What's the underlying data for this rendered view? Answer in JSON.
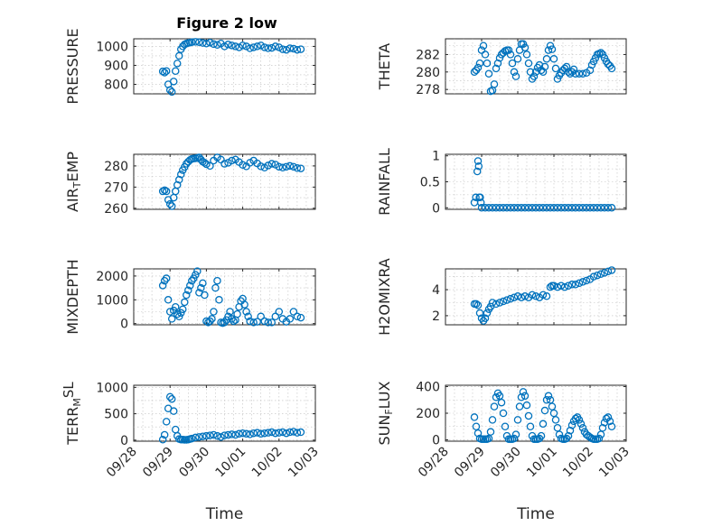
{
  "figure": {
    "title": "Figure 2 low",
    "marker_color": "#0072BD",
    "grid": true
  },
  "chart_data": [
    {
      "type": "scatter",
      "id": "pressure",
      "col": 0,
      "row": 0,
      "title": "Figure 2 low",
      "ylabel": "PRESSURE",
      "ylabel_parts": [
        {
          "t": "PRESSURE",
          "s": "n"
        }
      ],
      "xlabel": "",
      "xlim": [
        0,
        5
      ],
      "ylim": [
        750,
        1040
      ],
      "yticks": [
        800,
        900,
        1000
      ],
      "ytick_labels": [
        "800",
        "900",
        "1000"
      ],
      "xticks": [
        0,
        1,
        2,
        3,
        4,
        5
      ],
      "xtick_labels": [],
      "x": [
        0.8,
        0.85,
        0.9,
        0.95,
        1.0,
        1.05,
        1.1,
        1.15,
        1.2,
        1.25,
        1.3,
        1.35,
        1.4,
        1.45,
        1.5,
        1.55,
        1.6,
        1.7,
        1.8,
        1.9,
        2.0,
        2.1,
        2.2,
        2.3,
        2.4,
        2.5,
        2.6,
        2.7,
        2.8,
        2.9,
        3.0,
        3.1,
        3.2,
        3.3,
        3.4,
        3.5,
        3.6,
        3.7,
        3.8,
        3.9,
        4.0,
        4.1,
        4.2,
        4.3,
        4.4,
        4.5,
        4.6
      ],
      "y": [
        868,
        862,
        870,
        800,
        770,
        760,
        815,
        870,
        910,
        950,
        985,
        1000,
        1010,
        1015,
        1018,
        1020,
        1022,
        1024,
        1022,
        1018,
        1015,
        1020,
        1012,
        1008,
        1015,
        1000,
        1010,
        1005,
        1000,
        995,
        1005,
        1000,
        990,
        995,
        1000,
        1005,
        995,
        990,
        992,
        1000,
        995,
        985,
        982,
        990,
        988,
        982,
        985
      ]
    },
    {
      "type": "scatter",
      "id": "theta",
      "col": 1,
      "row": 0,
      "ylabel": "THETA",
      "ylabel_parts": [
        {
          "t": "THETA",
          "s": "n"
        }
      ],
      "xlabel": "",
      "xlim": [
        0,
        5
      ],
      "ylim": [
        277.5,
        283.8
      ],
      "yticks": [
        278,
        280,
        282
      ],
      "ytick_labels": [
        "278",
        "280",
        "282"
      ],
      "xticks": [
        0,
        1,
        2,
        3,
        4,
        5
      ],
      "xtick_labels": [],
      "x": [
        0.8,
        0.85,
        0.9,
        0.95,
        1.0,
        1.05,
        1.1,
        1.15,
        1.2,
        1.25,
        1.3,
        1.35,
        1.4,
        1.45,
        1.5,
        1.55,
        1.6,
        1.65,
        1.7,
        1.75,
        1.8,
        1.85,
        1.9,
        1.95,
        2.0,
        2.05,
        2.1,
        2.15,
        2.2,
        2.25,
        2.3,
        2.35,
        2.4,
        2.45,
        2.5,
        2.55,
        2.6,
        2.65,
        2.7,
        2.75,
        2.8,
        2.85,
        2.9,
        2.95,
        3.0,
        3.05,
        3.1,
        3.15,
        3.2,
        3.25,
        3.3,
        3.35,
        3.4,
        3.45,
        3.5,
        3.55,
        3.6,
        3.7,
        3.8,
        3.9,
        4.0,
        4.05,
        4.1,
        4.15,
        4.2,
        4.25,
        4.3,
        4.35,
        4.4,
        4.45,
        4.5,
        4.55,
        4.6
      ],
      "y": [
        280.0,
        280.2,
        280.5,
        281.0,
        282.5,
        283.0,
        282.0,
        281.0,
        279.8,
        277.8,
        277.9,
        278.6,
        280.4,
        281.0,
        281.6,
        282.0,
        282.2,
        282.4,
        282.5,
        282.5,
        282.0,
        281.0,
        280.0,
        279.5,
        281.5,
        282.5,
        283.2,
        283.2,
        282.8,
        282.0,
        281.0,
        280.0,
        279.2,
        279.5,
        280.0,
        280.5,
        280.8,
        280.2,
        280.0,
        280.6,
        281.5,
        282.5,
        283.0,
        282.6,
        281.5,
        280.4,
        279.2,
        279.6,
        279.9,
        280.2,
        280.4,
        280.6,
        280.0,
        279.8,
        280.0,
        280.3,
        279.8,
        279.8,
        279.8,
        279.9,
        280.2,
        280.8,
        281.2,
        281.6,
        282.0,
        282.1,
        282.2,
        282.0,
        281.6,
        281.2,
        280.9,
        280.7,
        280.4
      ]
    },
    {
      "type": "scatter",
      "id": "air_temp",
      "col": 0,
      "row": 1,
      "ylabel": "AIR_TEMP",
      "ylabel_parts": [
        {
          "t": "AIR",
          "s": "n"
        },
        {
          "t": "T",
          "s": "sub"
        },
        {
          "t": "EMP",
          "s": "n"
        }
      ],
      "xlabel": "",
      "xlim": [
        0,
        5
      ],
      "ylim": [
        259.5,
        285.5
      ],
      "yticks": [
        260,
        270,
        280
      ],
      "ytick_labels": [
        "260",
        "270",
        "280"
      ],
      "xticks": [
        0,
        1,
        2,
        3,
        4,
        5
      ],
      "xtick_labels": [],
      "x": [
        0.8,
        0.85,
        0.9,
        0.95,
        1.0,
        1.05,
        1.1,
        1.15,
        1.2,
        1.25,
        1.3,
        1.35,
        1.4,
        1.45,
        1.5,
        1.55,
        1.6,
        1.65,
        1.7,
        1.75,
        1.8,
        1.85,
        1.9,
        1.95,
        2.0,
        2.1,
        2.2,
        2.3,
        2.4,
        2.5,
        2.6,
        2.7,
        2.8,
        2.9,
        3.0,
        3.1,
        3.2,
        3.3,
        3.4,
        3.5,
        3.6,
        3.7,
        3.8,
        3.9,
        4.0,
        4.1,
        4.2,
        4.3,
        4.4,
        4.5,
        4.6
      ],
      "y": [
        268.0,
        268.5,
        268.0,
        264.0,
        262.0,
        261.0,
        265.0,
        268.0,
        271.0,
        273.5,
        276.0,
        278.0,
        279.5,
        281.0,
        282.0,
        282.8,
        283.3,
        283.5,
        283.6,
        283.8,
        284.0,
        283.0,
        282.0,
        281.5,
        280.8,
        280.0,
        282.5,
        284.0,
        283.0,
        281.0,
        281.5,
        282.5,
        283.0,
        281.8,
        280.5,
        279.8,
        281.5,
        282.5,
        281.2,
        279.8,
        279.2,
        280.2,
        281.0,
        280.6,
        279.6,
        279.2,
        279.6,
        280.0,
        279.6,
        279.0,
        278.8
      ]
    },
    {
      "type": "scatter",
      "id": "rainfall",
      "col": 1,
      "row": 1,
      "ylabel": "RAINFALL",
      "ylabel_parts": [
        {
          "t": "RAINFALL",
          "s": "n"
        }
      ],
      "xlabel": "",
      "xlim": [
        0,
        5
      ],
      "ylim": [
        -0.03,
        1.03
      ],
      "yticks": [
        0,
        0.5,
        1
      ],
      "ytick_labels": [
        "0",
        "0.5",
        "1"
      ],
      "xticks": [
        0,
        1,
        2,
        3,
        4,
        5
      ],
      "xtick_labels": [],
      "x": [
        0.8,
        0.84,
        0.88,
        0.9,
        0.92,
        0.94,
        0.96,
        0.98,
        1.0,
        1.1,
        1.2,
        1.3,
        1.4,
        1.5,
        1.6,
        1.7,
        1.8,
        1.9,
        2.0,
        2.1,
        2.2,
        2.3,
        2.4,
        2.5,
        2.6,
        2.7,
        2.8,
        2.9,
        3.0,
        3.1,
        3.2,
        3.3,
        3.4,
        3.5,
        3.6,
        3.7,
        3.8,
        3.9,
        4.0,
        4.1,
        4.2,
        4.3,
        4.4,
        4.5,
        4.6
      ],
      "y": [
        0.1,
        0.2,
        0.7,
        0.9,
        0.8,
        0.2,
        0.2,
        0.1,
        0.0,
        0,
        0,
        0,
        0,
        0,
        0,
        0,
        0,
        0,
        0,
        0,
        0,
        0,
        0,
        0,
        0,
        0,
        0,
        0,
        0,
        0,
        0,
        0,
        0,
        0,
        0,
        0,
        0,
        0,
        0,
        0,
        0,
        0,
        0,
        0,
        0
      ]
    },
    {
      "type": "scatter",
      "id": "mixdepth",
      "col": 0,
      "row": 2,
      "ylabel": "MIXDEPTH",
      "ylabel_parts": [
        {
          "t": "MIXDEPTH",
          "s": "n"
        }
      ],
      "xlabel": "",
      "xlim": [
        0,
        5
      ],
      "ylim": [
        -50,
        2300
      ],
      "yticks": [
        0,
        1000,
        2000
      ],
      "ytick_labels": [
        "0",
        "1000",
        "2000"
      ],
      "xticks": [
        0,
        1,
        2,
        3,
        4,
        5
      ],
      "xtick_labels": [],
      "x": [
        0.8,
        0.85,
        0.9,
        0.95,
        1.0,
        1.05,
        1.1,
        1.15,
        1.2,
        1.25,
        1.3,
        1.35,
        1.4,
        1.45,
        1.5,
        1.55,
        1.6,
        1.65,
        1.7,
        1.75,
        1.8,
        1.85,
        1.9,
        1.95,
        2.0,
        2.05,
        2.1,
        2.15,
        2.2,
        2.25,
        2.3,
        2.35,
        2.4,
        2.45,
        2.5,
        2.55,
        2.6,
        2.65,
        2.7,
        2.75,
        2.8,
        2.85,
        2.9,
        2.95,
        3.0,
        3.05,
        3.1,
        3.15,
        3.2,
        3.3,
        3.4,
        3.5,
        3.6,
        3.7,
        3.8,
        3.9,
        4.0,
        4.1,
        4.2,
        4.3,
        4.4,
        4.5,
        4.6
      ],
      "y": [
        1600,
        1800,
        1900,
        1000,
        500,
        200,
        550,
        700,
        400,
        300,
        450,
        600,
        900,
        1200,
        1400,
        1600,
        1800,
        1900,
        2050,
        2200,
        1300,
        1500,
        1700,
        1200,
        100,
        50,
        100,
        200,
        500,
        1500,
        1800,
        1000,
        50,
        20,
        50,
        150,
        300,
        500,
        200,
        100,
        150,
        400,
        700,
        950,
        1050,
        800,
        500,
        300,
        100,
        50,
        80,
        300,
        100,
        50,
        50,
        300,
        500,
        200,
        80,
        200,
        500,
        300,
        250
      ]
    },
    {
      "type": "scatter",
      "id": "h2omixra",
      "col": 1,
      "row": 2,
      "ylabel": "H2OMIXRA",
      "ylabel_parts": [
        {
          "t": "H2OMIXRA",
          "s": "n"
        }
      ],
      "xlabel": "",
      "xlim": [
        0,
        5
      ],
      "ylim": [
        1.3,
        5.6
      ],
      "yticks": [
        2,
        4
      ],
      "ytick_labels": [
        "2",
        "4"
      ],
      "xticks": [
        0,
        1,
        2,
        3,
        4,
        5
      ],
      "xtick_labels": [],
      "x": [
        0.8,
        0.85,
        0.9,
        0.95,
        1.0,
        1.05,
        1.1,
        1.15,
        1.2,
        1.25,
        1.3,
        1.4,
        1.5,
        1.6,
        1.7,
        1.8,
        1.9,
        2.0,
        2.1,
        2.2,
        2.3,
        2.4,
        2.5,
        2.6,
        2.7,
        2.8,
        2.9,
        2.95,
        3.0,
        3.1,
        3.2,
        3.3,
        3.4,
        3.5,
        3.6,
        3.7,
        3.8,
        3.9,
        4.0,
        4.1,
        4.2,
        4.3,
        4.4,
        4.5,
        4.6
      ],
      "y": [
        2.9,
        2.9,
        2.8,
        2.2,
        1.8,
        1.6,
        1.8,
        2.2,
        2.5,
        2.7,
        3.0,
        2.9,
        3.0,
        3.1,
        3.2,
        3.3,
        3.4,
        3.5,
        3.4,
        3.5,
        3.4,
        3.6,
        3.5,
        3.4,
        3.6,
        3.5,
        4.2,
        4.3,
        4.3,
        4.2,
        4.3,
        4.2,
        4.3,
        4.4,
        4.4,
        4.5,
        4.6,
        4.7,
        4.8,
        5.0,
        5.1,
        5.2,
        5.3,
        5.4,
        5.5
      ]
    },
    {
      "type": "scatter",
      "id": "terr_msl",
      "col": 0,
      "row": 3,
      "ylabel": "TERR_MSL",
      "ylabel_parts": [
        {
          "t": "TERR",
          "s": "n"
        },
        {
          "t": "M",
          "s": "sub"
        },
        {
          "t": "SL",
          "s": "sup"
        }
      ],
      "xlabel": "Time",
      "xlim": [
        0,
        5
      ],
      "ylim": [
        -20,
        1040
      ],
      "yticks": [
        0,
        500,
        1000
      ],
      "ytick_labels": [
        "0",
        "500",
        "1000"
      ],
      "xticks": [
        0,
        1,
        2,
        3,
        4,
        5
      ],
      "xtick_labels": [
        "09/28",
        "09/29",
        "09/30",
        "10/01",
        "10/02",
        "10/03"
      ],
      "x": [
        0.8,
        0.85,
        0.9,
        0.95,
        1.0,
        1.05,
        1.1,
        1.15,
        1.2,
        1.25,
        1.3,
        1.35,
        1.4,
        1.45,
        1.5,
        1.55,
        1.6,
        1.7,
        1.8,
        1.9,
        2.0,
        2.1,
        2.2,
        2.3,
        2.4,
        2.5,
        2.6,
        2.7,
        2.8,
        2.9,
        3.0,
        3.1,
        3.2,
        3.3,
        3.4,
        3.5,
        3.6,
        3.7,
        3.8,
        3.9,
        4.0,
        4.1,
        4.2,
        4.3,
        4.4,
        4.5,
        4.6
      ],
      "y": [
        10,
        100,
        350,
        600,
        820,
        780,
        550,
        200,
        80,
        20,
        10,
        10,
        5,
        5,
        10,
        20,
        30,
        50,
        60,
        70,
        80,
        90,
        100,
        80,
        60,
        90,
        100,
        110,
        100,
        120,
        130,
        120,
        110,
        130,
        140,
        120,
        130,
        140,
        150,
        130,
        140,
        150,
        130,
        150,
        160,
        140,
        150
      ]
    },
    {
      "type": "scatter",
      "id": "sun_flux",
      "col": 1,
      "row": 3,
      "ylabel": "SUN_FLUX",
      "ylabel_parts": [
        {
          "t": "SUN",
          "s": "n"
        },
        {
          "t": "F",
          "s": "sub"
        },
        {
          "t": "LUX",
          "s": "n"
        }
      ],
      "xlabel": "Time",
      "xlim": [
        0,
        5
      ],
      "ylim": [
        -10,
        410
      ],
      "yticks": [
        0,
        200,
        400
      ],
      "ytick_labels": [
        "0",
        "200",
        "400"
      ],
      "xticks": [
        0,
        1,
        2,
        3,
        4,
        5
      ],
      "xtick_labels": [
        "09/28",
        "09/29",
        "09/30",
        "10/01",
        "10/02",
        "10/03"
      ],
      "x": [
        0.8,
        0.85,
        0.9,
        0.95,
        1.0,
        1.05,
        1.1,
        1.15,
        1.2,
        1.25,
        1.3,
        1.35,
        1.4,
        1.45,
        1.5,
        1.55,
        1.6,
        1.65,
        1.7,
        1.75,
        1.8,
        1.85,
        1.9,
        1.95,
        2.0,
        2.05,
        2.1,
        2.15,
        2.2,
        2.25,
        2.3,
        2.35,
        2.4,
        2.45,
        2.5,
        2.55,
        2.6,
        2.65,
        2.7,
        2.75,
        2.8,
        2.85,
        2.9,
        2.95,
        3.0,
        3.05,
        3.1,
        3.15,
        3.2,
        3.25,
        3.3,
        3.35,
        3.4,
        3.45,
        3.5,
        3.55,
        3.6,
        3.65,
        3.7,
        3.75,
        3.8,
        3.85,
        3.9,
        3.95,
        4.0,
        4.05,
        4.1,
        4.15,
        4.2,
        4.25,
        4.3,
        4.35,
        4.4,
        4.45,
        4.5,
        4.55,
        4.6
      ],
      "y": [
        170,
        100,
        50,
        10,
        5,
        5,
        5,
        5,
        10,
        60,
        150,
        250,
        320,
        350,
        330,
        280,
        200,
        100,
        30,
        5,
        5,
        5,
        10,
        40,
        150,
        250,
        320,
        360,
        330,
        260,
        180,
        100,
        30,
        5,
        5,
        5,
        10,
        30,
        120,
        220,
        300,
        330,
        300,
        250,
        200,
        150,
        90,
        40,
        10,
        5,
        5,
        10,
        30,
        70,
        110,
        140,
        160,
        170,
        150,
        120,
        90,
        60,
        40,
        30,
        20,
        10,
        5,
        5,
        5,
        10,
        40,
        90,
        130,
        160,
        170,
        140,
        100
      ]
    }
  ]
}
